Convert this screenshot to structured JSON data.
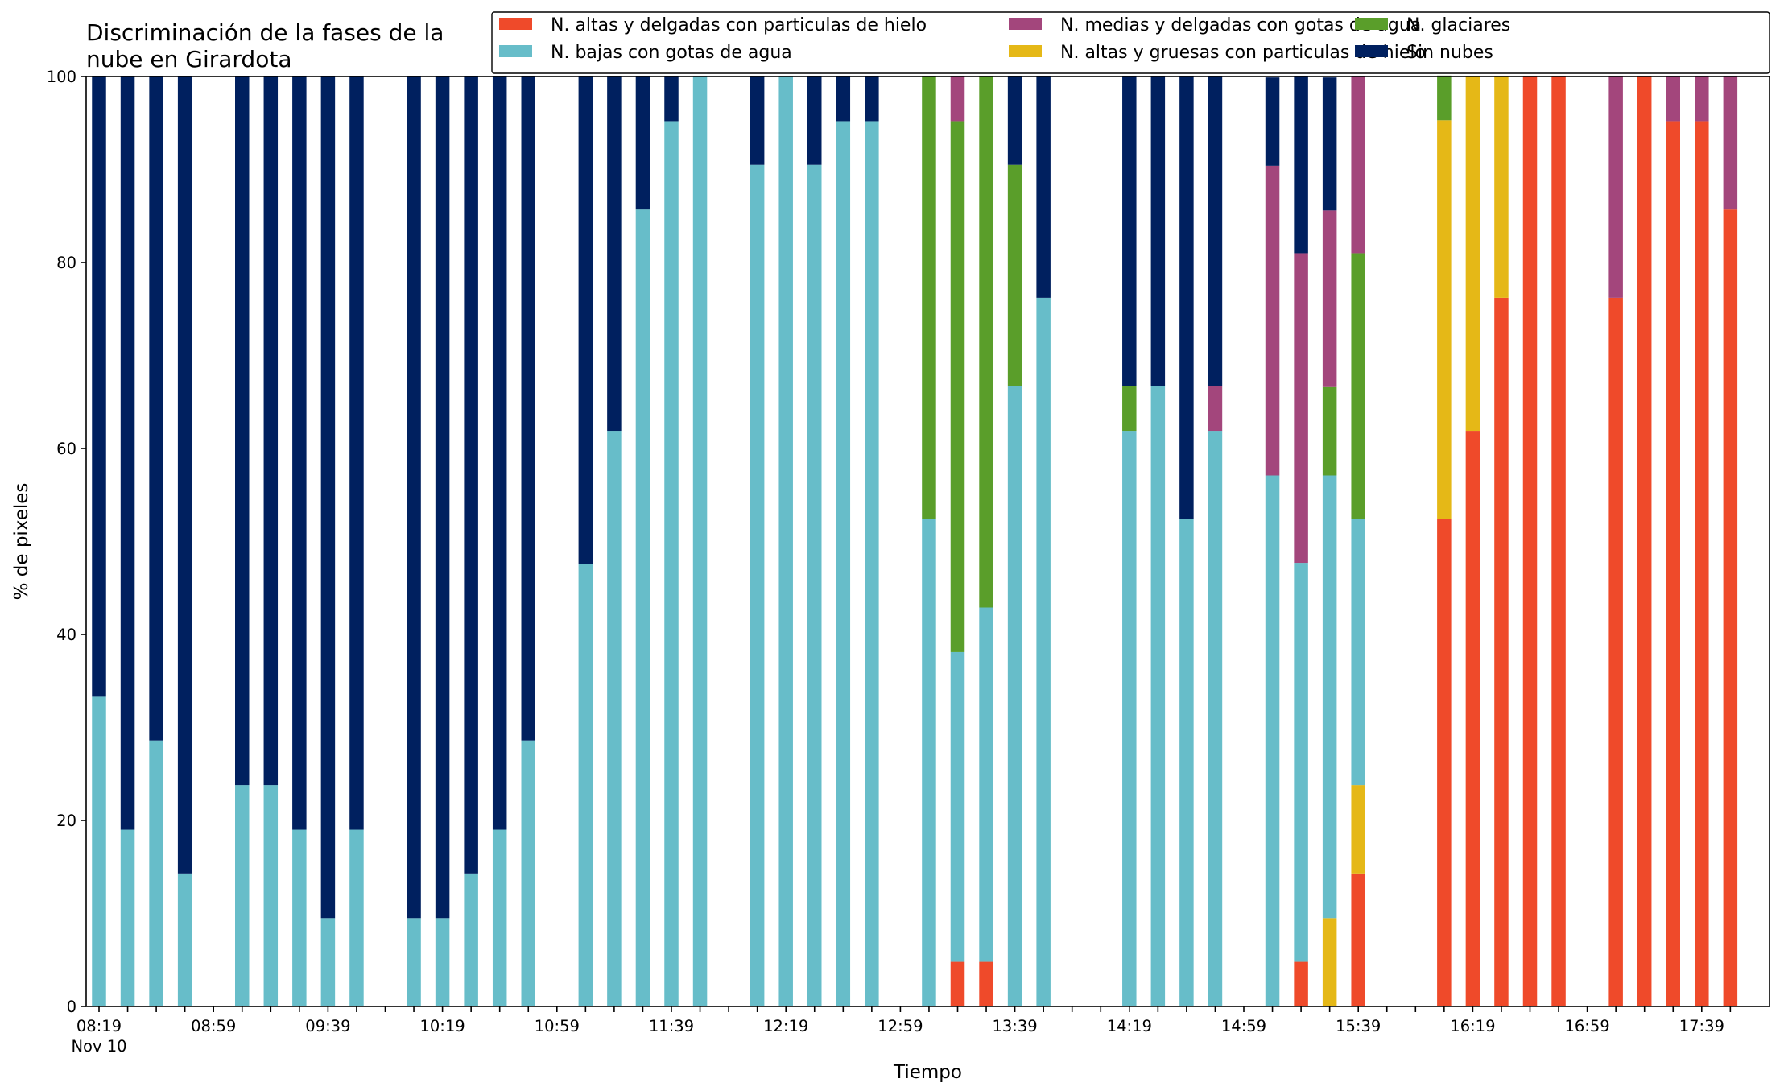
{
  "chart_data": {
    "type": "bar",
    "stacked": true,
    "title_lines": [
      "Discriminación de la fases de la",
      "nube en Girardota"
    ],
    "xlabel": "Tiempo",
    "ylabel": "% de pixeles",
    "ylim": [
      0,
      100
    ],
    "yticks": [
      0,
      20,
      40,
      60,
      80,
      100
    ],
    "xticks": [
      {
        "i": 0,
        "label": "08:19",
        "sublabel": "Nov 10"
      },
      {
        "i": 4,
        "label": "08:59"
      },
      {
        "i": 8,
        "label": "09:39"
      },
      {
        "i": 12,
        "label": "10:19"
      },
      {
        "i": 16,
        "label": "10:59"
      },
      {
        "i": 20,
        "label": "11:39"
      },
      {
        "i": 24,
        "label": "12:19"
      },
      {
        "i": 28,
        "label": "12:59"
      },
      {
        "i": 32,
        "label": "13:39"
      },
      {
        "i": 36,
        "label": "14:19"
      },
      {
        "i": 40,
        "label": "14:59"
      },
      {
        "i": 44,
        "label": "15:39"
      },
      {
        "i": 48,
        "label": "16:19"
      },
      {
        "i": 52,
        "label": "16:59"
      },
      {
        "i": 56,
        "label": "17:39"
      }
    ],
    "grid": false,
    "legend_position": "top",
    "n_slots": 58,
    "series": [
      {
        "name": "N. altas y delgadas con particulas de hielo",
        "color": "#ef4a2a",
        "key": "ad"
      },
      {
        "name": "N. altas y gruesas con particulas de hielo",
        "color": "#e5b817",
        "key": "ag"
      },
      {
        "name": "N. bajas con gotas de agua",
        "color": "#67bdc9",
        "key": "b"
      },
      {
        "name": "N. glaciares",
        "color": "#5a9e2a",
        "key": "g"
      },
      {
        "name": "N. medias y delgadas con gotas de agua",
        "color": "#a3467c",
        "key": "m"
      },
      {
        "name": "Sin nubes",
        "color": "#00205f",
        "key": "s"
      }
    ],
    "legend_order": [
      "ad",
      "b",
      "m",
      "ag",
      "g",
      "s"
    ],
    "stack_order": [
      "ad",
      "ag",
      "b",
      "g",
      "m",
      "s"
    ],
    "bars": [
      {
        "i": 0,
        "b": 33.3,
        "s": 66.7
      },
      {
        "i": 1,
        "b": 19.0,
        "s": 81.0
      },
      {
        "i": 2,
        "b": 28.6,
        "s": 71.4
      },
      {
        "i": 3,
        "b": 14.3,
        "s": 85.7
      },
      {
        "i": 5,
        "b": 23.8,
        "s": 76.2
      },
      {
        "i": 6,
        "b": 23.8,
        "s": 76.2
      },
      {
        "i": 7,
        "b": 19.0,
        "s": 81.0
      },
      {
        "i": 8,
        "b": 9.5,
        "s": 90.5
      },
      {
        "i": 9,
        "b": 19.0,
        "s": 81.0
      },
      {
        "i": 11,
        "b": 9.5,
        "s": 90.5
      },
      {
        "i": 12,
        "b": 9.5,
        "s": 90.5
      },
      {
        "i": 13,
        "b": 14.3,
        "s": 85.7
      },
      {
        "i": 14,
        "b": 19.0,
        "s": 81.0
      },
      {
        "i": 15,
        "b": 28.6,
        "s": 71.4
      },
      {
        "i": 17,
        "b": 47.6,
        "s": 52.4
      },
      {
        "i": 18,
        "b": 61.9,
        "s": 38.1
      },
      {
        "i": 19,
        "b": 85.7,
        "s": 14.3
      },
      {
        "i": 20,
        "b": 95.2,
        "s": 4.8
      },
      {
        "i": 21,
        "b": 100
      },
      {
        "i": 23,
        "b": 90.5,
        "s": 9.5
      },
      {
        "i": 24,
        "b": 100
      },
      {
        "i": 25,
        "b": 90.5,
        "s": 9.5
      },
      {
        "i": 26,
        "b": 95.2,
        "s": 4.8
      },
      {
        "i": 27,
        "b": 95.2,
        "s": 4.8
      },
      {
        "i": 29,
        "b": 52.4,
        "g": 47.6
      },
      {
        "i": 30,
        "ad": 4.8,
        "b": 33.3,
        "g": 57.1,
        "m": 4.8
      },
      {
        "i": 31,
        "ad": 4.8,
        "b": 38.1,
        "g": 57.1
      },
      {
        "i": 32,
        "b": 66.7,
        "g": 23.8,
        "s": 9.5
      },
      {
        "i": 33,
        "b": 76.2,
        "s": 23.8
      },
      {
        "i": 36,
        "b": 61.9,
        "g": 4.8,
        "s": 33.3
      },
      {
        "i": 37,
        "b": 66.7,
        "s": 33.3
      },
      {
        "i": 38,
        "b": 52.4,
        "s": 47.6
      },
      {
        "i": 39,
        "b": 61.9,
        "m": 4.8,
        "s": 33.3
      },
      {
        "i": 41,
        "b": 57.1,
        "m": 33.3,
        "s": 9.5
      },
      {
        "i": 42,
        "ad": 4.8,
        "b": 42.9,
        "m": 33.3,
        "s": 19.0
      },
      {
        "i": 43,
        "ag": 9.5,
        "b": 47.6,
        "g": 9.5,
        "m": 19.0,
        "s": 14.3
      },
      {
        "i": 44,
        "ad": 14.3,
        "ag": 9.5,
        "b": 28.6,
        "g": 28.6,
        "m": 19.0
      },
      {
        "i": 47,
        "ad": 52.4,
        "ag": 42.9,
        "g": 4.8
      },
      {
        "i": 48,
        "ad": 61.9,
        "ag": 38.1
      },
      {
        "i": 49,
        "ad": 76.2,
        "ag": 23.8
      },
      {
        "i": 50,
        "ad": 100
      },
      {
        "i": 51,
        "ad": 100
      },
      {
        "i": 53,
        "ad": 76.2,
        "m": 23.8
      },
      {
        "i": 54,
        "ad": 100
      },
      {
        "i": 55,
        "ad": 95.2,
        "m": 4.8
      },
      {
        "i": 56,
        "ad": 95.2,
        "m": 4.8
      },
      {
        "i": 57,
        "ad": 85.7,
        "m": 14.3
      }
    ]
  }
}
